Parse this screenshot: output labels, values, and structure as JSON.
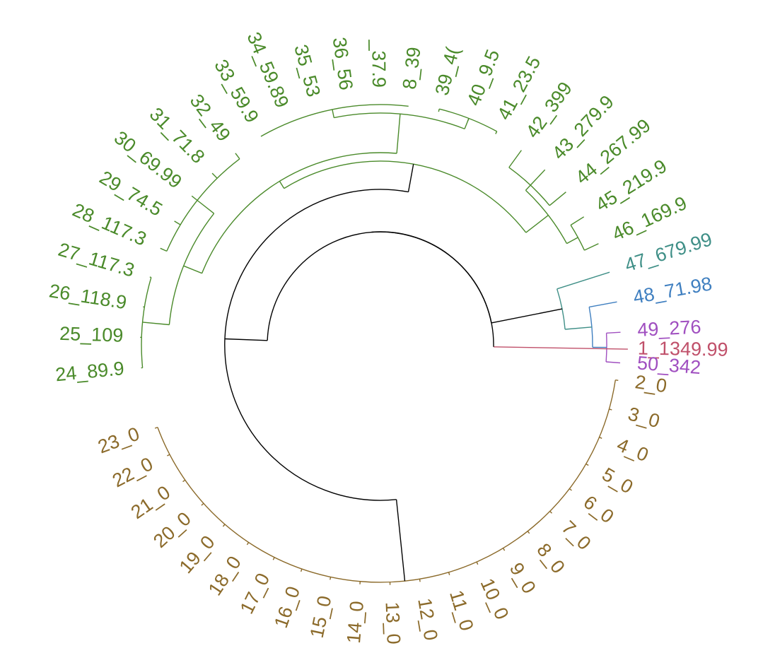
{
  "colors": {
    "root": "#000000",
    "red": "#c0506a",
    "brown": "#8b6a2a",
    "green": "#4a8a2a",
    "teal": "#3f8f87",
    "blue": "#3f7fc0",
    "purple": "#a04fc0"
  },
  "leaves": [
    {
      "label": "1_1349.99",
      "group": "red"
    },
    {
      "label": "2_0",
      "group": "brown"
    },
    {
      "label": "3_0",
      "group": "brown"
    },
    {
      "label": "4_0",
      "group": "brown"
    },
    {
      "label": "5_0",
      "group": "brown"
    },
    {
      "label": "6_0",
      "group": "brown"
    },
    {
      "label": "7_0",
      "group": "brown"
    },
    {
      "label": "8_0",
      "group": "brown"
    },
    {
      "label": "9_0",
      "group": "brown"
    },
    {
      "label": "10_0",
      "group": "brown"
    },
    {
      "label": "11_0",
      "group": "brown"
    },
    {
      "label": "12_0",
      "group": "brown"
    },
    {
      "label": "13_0",
      "group": "brown"
    },
    {
      "label": "14_0",
      "group": "brown"
    },
    {
      "label": "15_0",
      "group": "brown"
    },
    {
      "label": "16_0",
      "group": "brown"
    },
    {
      "label": "17_0",
      "group": "brown"
    },
    {
      "label": "18_0",
      "group": "brown"
    },
    {
      "label": "19_0",
      "group": "brown"
    },
    {
      "label": "20_0",
      "group": "brown"
    },
    {
      "label": "21_0",
      "group": "brown"
    },
    {
      "label": "22_0",
      "group": "brown"
    },
    {
      "label": "23_0",
      "group": "brown"
    },
    {
      "label": "24_89.9",
      "group": "green"
    },
    {
      "label": "25_109",
      "group": "green"
    },
    {
      "label": "26_118.9",
      "group": "green"
    },
    {
      "label": "27_117.3",
      "group": "green"
    },
    {
      "label": "28_117.3",
      "group": "green"
    },
    {
      "label": "29_74.5",
      "group": "green"
    },
    {
      "label": "30_69.99",
      "group": "green"
    },
    {
      "label": "31_71.8",
      "group": "green"
    },
    {
      "label": "32_49",
      "group": "green"
    },
    {
      "label": "33_59.9",
      "group": "green"
    },
    {
      "label": "34_59.89",
      "group": "green"
    },
    {
      "label": "35_53",
      "group": "green"
    },
    {
      "label": "36_56",
      "group": "green"
    },
    {
      "label": "_37.9",
      "group": "green"
    },
    {
      "label": "8_39",
      "group": "green"
    },
    {
      "label": "39_4(",
      "group": "green"
    },
    {
      "label": "40_9.5",
      "group": "green"
    },
    {
      "label": "41_23.5",
      "group": "green"
    },
    {
      "label": "42_399",
      "group": "green"
    },
    {
      "label": "43_279.9",
      "group": "green"
    },
    {
      "label": "44_267.99",
      "group": "green"
    },
    {
      "label": "45_219.9",
      "group": "green"
    },
    {
      "label": "46_169.9",
      "group": "green"
    },
    {
      "label": "47_679.99",
      "group": "teal"
    },
    {
      "label": "48_71.98",
      "group": "blue"
    },
    {
      "label": "49_276",
      "group": "purple"
    },
    {
      "label": "50_342",
      "group": "purple"
    }
  ]
}
